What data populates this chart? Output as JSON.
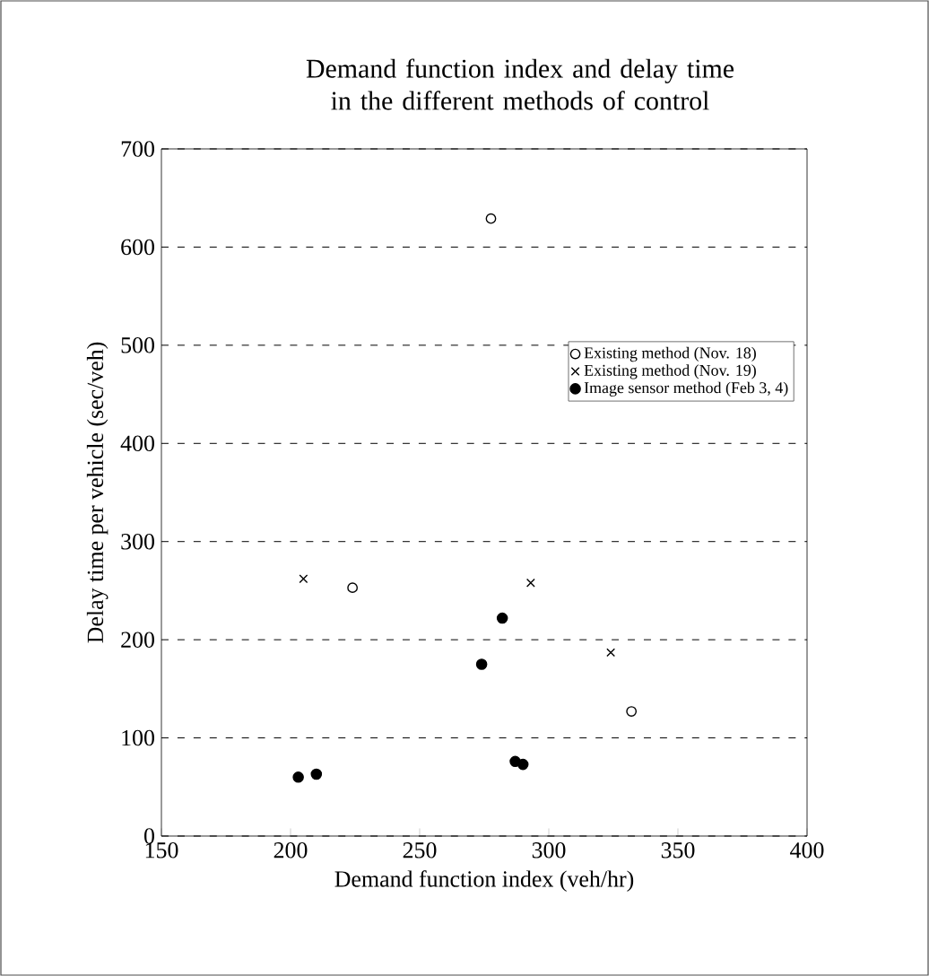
{
  "chart_data": {
    "type": "scatter",
    "title": "Demand function index and delay time in the different methods of control",
    "xlabel": "Demand function index (veh/hr)",
    "ylabel": "Delay time per vehicle  (sec/veh)",
    "xlim": [
      150,
      400
    ],
    "xticks": [
      150,
      200,
      250,
      300,
      350,
      400
    ],
    "ylim": [
      0,
      700
    ],
    "yticks": [
      0,
      100,
      200,
      300,
      400,
      500,
      600,
      700
    ],
    "grid": "y",
    "legend": "right",
    "series": [
      {
        "name": "Existing method (Nov. 18)",
        "color": "#000000",
        "marker": "circle",
        "x": [
          277.6,
          224,
          332
        ],
        "values": [
          629,
          253,
          127
        ]
      },
      {
        "name": "Existing method (Nov. 19)",
        "color": "#000000",
        "marker": "cross",
        "x": [
          205,
          293,
          324
        ],
        "values": [
          262,
          258,
          187
        ]
      },
      {
        "name": "Image sensor method (Feb 3, 4)",
        "color": "#000000",
        "marker": "filled circle",
        "x": [
          203,
          210,
          274,
          282,
          287,
          290
        ],
        "values": [
          60,
          63,
          175,
          222,
          76,
          73
        ]
      }
    ]
  }
}
